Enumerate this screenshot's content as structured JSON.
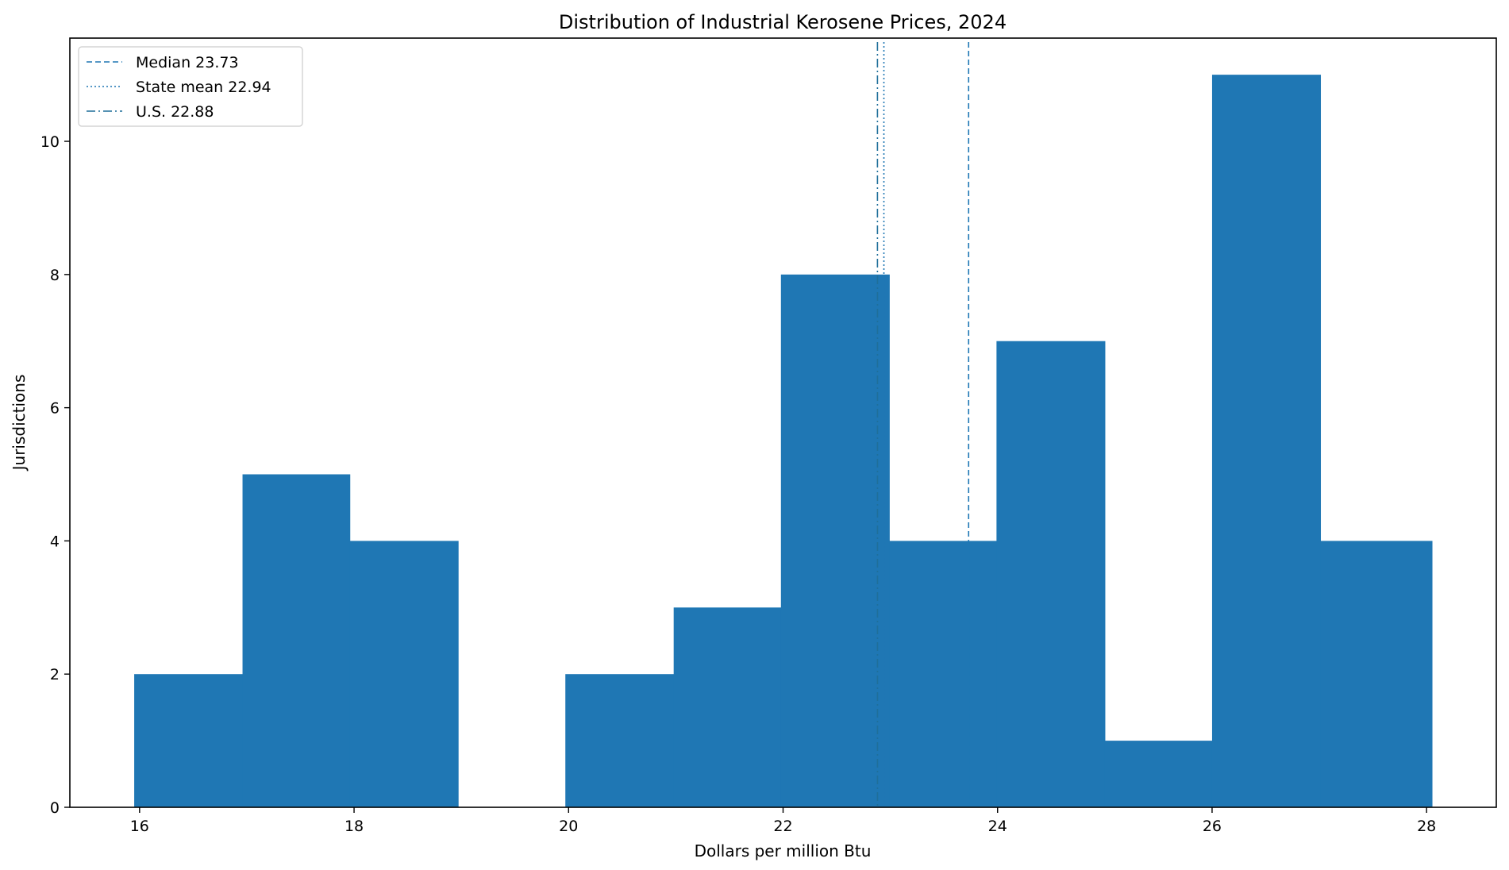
{
  "chart_data": {
    "type": "bar",
    "title": "Distribution of Industrial Kerosene Prices, 2024",
    "xlabel": "Dollars per million Btu",
    "ylabel": "Jurisdictions",
    "xlim": [
      15.35,
      28.65
    ],
    "ylim": [
      0,
      11.55
    ],
    "xticks": [
      16,
      18,
      20,
      22,
      24,
      26,
      28
    ],
    "yticks": [
      0,
      2,
      4,
      6,
      8,
      10
    ],
    "bins": [
      {
        "x0": 15.95,
        "x1": 16.96,
        "count": 2
      },
      {
        "x0": 16.96,
        "x1": 17.96,
        "count": 5
      },
      {
        "x0": 17.96,
        "x1": 18.97,
        "count": 4
      },
      {
        "x0": 18.97,
        "x1": 19.97,
        "count": 0
      },
      {
        "x0": 19.97,
        "x1": 20.98,
        "count": 2
      },
      {
        "x0": 20.98,
        "x1": 21.98,
        "count": 3
      },
      {
        "x0": 21.98,
        "x1": 22.99,
        "count": 8
      },
      {
        "x0": 22.99,
        "x1": 23.99,
        "count": 4
      },
      {
        "x0": 23.99,
        "x1": 25.0,
        "count": 7
      },
      {
        "x0": 25.0,
        "x1": 26.0,
        "count": 1
      },
      {
        "x0": 26.0,
        "x1": 27.01,
        "count": 11
      },
      {
        "x0": 27.01,
        "x1": 28.05,
        "count": 4
      }
    ],
    "bar_color": "#1f77b4",
    "reference_lines": [
      {
        "label": "Median 23.73",
        "x": 23.73,
        "style": "dashed",
        "color": "#1f77b4"
      },
      {
        "label": "State mean 22.94",
        "x": 22.94,
        "style": "dotted",
        "color": "#1f77b4"
      },
      {
        "label": "U.S. 22.88",
        "x": 22.88,
        "style": "dashdot",
        "color": "#1f6f9a"
      }
    ],
    "legend_position": "top-left",
    "grid": false
  }
}
